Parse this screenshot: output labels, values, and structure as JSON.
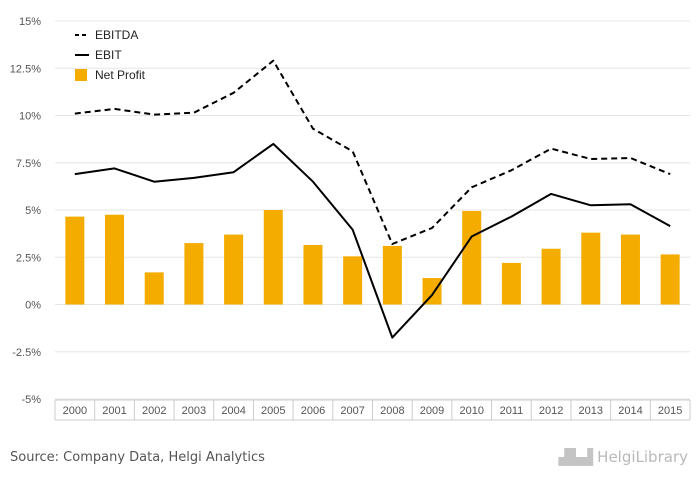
{
  "chart_data": {
    "type": "bar",
    "title": "",
    "xlabel": "",
    "ylabel": "",
    "categories": [
      "2000",
      "2001",
      "2002",
      "2003",
      "2004",
      "2005",
      "2006",
      "2007",
      "2008",
      "2009",
      "2010",
      "2011",
      "2012",
      "2013",
      "2014",
      "2015"
    ],
    "ylim": [
      -5,
      15
    ],
    "yticks": [
      "15%",
      "12.5%",
      "10%",
      "7.5%",
      "5%",
      "2.5%",
      "0%",
      "-2.5%",
      "-5%"
    ],
    "ytick_values": [
      15,
      12.5,
      10,
      7.5,
      5,
      2.5,
      0,
      -2.5,
      -5
    ],
    "grid": true,
    "legend_position": "top-left",
    "series": [
      {
        "name": "EBITDA",
        "type": "line",
        "style": "dashed",
        "color": "#000000",
        "values": [
          10.1,
          10.35,
          10.05,
          10.15,
          11.2,
          12.9,
          9.3,
          8.1,
          3.2,
          4.05,
          6.2,
          7.1,
          8.25,
          7.7,
          7.75,
          6.9
        ]
      },
      {
        "name": "EBIT",
        "type": "line",
        "style": "solid",
        "color": "#000000",
        "values": [
          6.9,
          7.2,
          6.5,
          6.7,
          7.0,
          8.5,
          6.5,
          3.95,
          -1.75,
          0.5,
          3.6,
          4.65,
          5.85,
          5.25,
          5.3,
          4.15
        ]
      },
      {
        "name": "Net Profit",
        "type": "bar",
        "color": "#f5ac00",
        "values": [
          4.65,
          4.75,
          1.7,
          3.25,
          3.7,
          5.0,
          3.15,
          2.55,
          3.1,
          1.4,
          4.95,
          2.2,
          2.95,
          3.8,
          3.7,
          2.65
        ]
      }
    ]
  },
  "footer": {
    "source": "Source: Company Data, Helgi Analytics",
    "logo": "HelgiLibrary"
  },
  "colors": {
    "bar": "#f5ac00",
    "grid": "#e5e5e5",
    "axis": "#cccccc"
  },
  "icons": {
    "logo_mark": "bar-chart-skyline-icon"
  }
}
